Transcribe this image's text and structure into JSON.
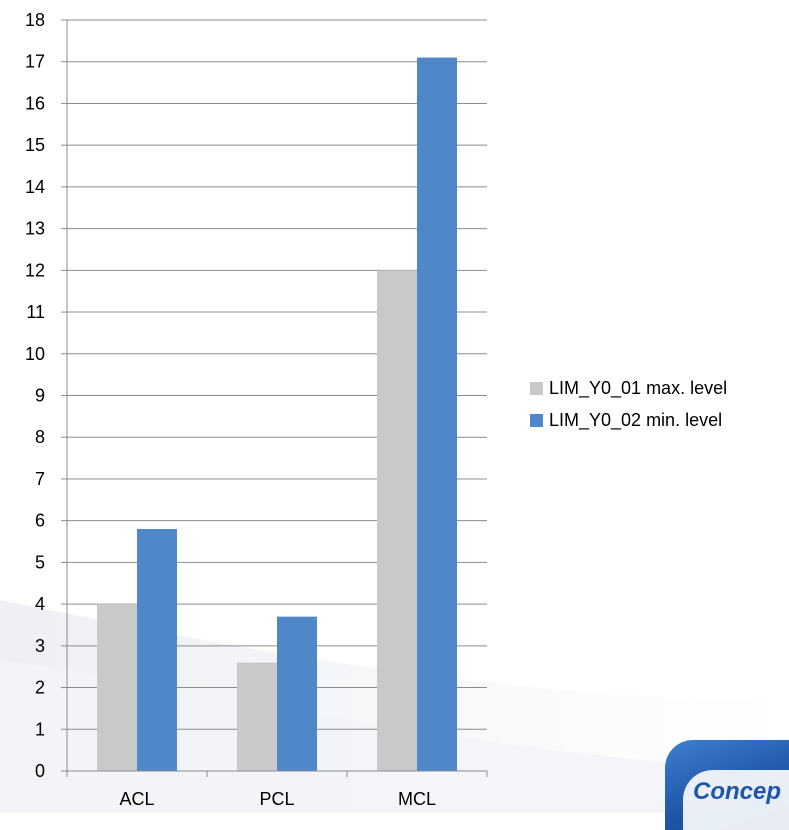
{
  "colors": {
    "series1": "#c8c9cb",
    "series2": "#4f87c8",
    "grid": "#8c8c8c",
    "logo": "#1f56a8"
  },
  "logo": {
    "text": "Concep"
  },
  "chart_data": {
    "type": "bar",
    "categories": [
      "ACL",
      "PCL",
      "MCL"
    ],
    "series": [
      {
        "name": "LIM_Y0_01 max. level",
        "values": [
          4,
          2.6,
          12
        ]
      },
      {
        "name": "LIM_Y0_02 min. level",
        "values": [
          5.8,
          3.7,
          17.1
        ]
      }
    ],
    "ylim": [
      0,
      18
    ],
    "yticks": [
      0,
      1,
      2,
      3,
      4,
      5,
      6,
      7,
      8,
      9,
      10,
      11,
      12,
      13,
      14,
      15,
      16,
      17,
      18
    ],
    "grid": true,
    "legend": "right",
    "title": "",
    "xlabel": "",
    "ylabel": ""
  }
}
